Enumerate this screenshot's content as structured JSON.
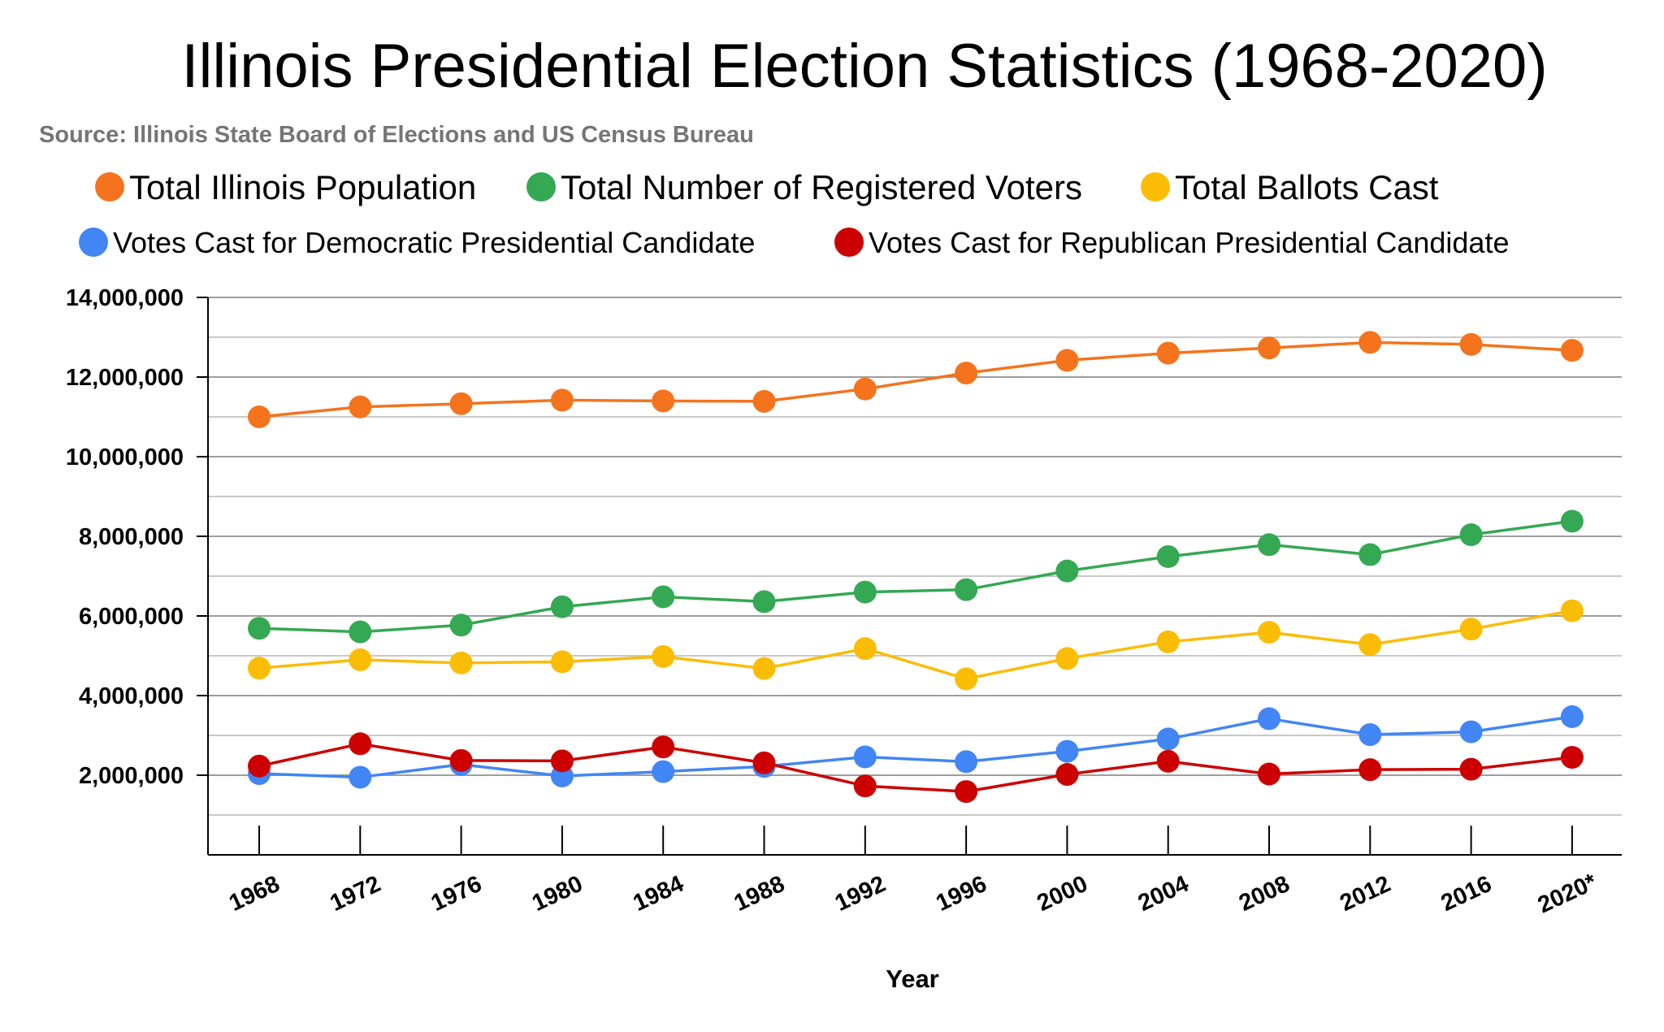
{
  "chart_data": {
    "type": "line",
    "title": "Illinois Presidential Election Statistics (1968-2020)",
    "subtitle": "Source: Illinois State Board of Elections and US Census Bureau",
    "xlabel": "Year",
    "ylabel": "",
    "ylim": [
      0,
      14000000
    ],
    "y_ticks": [
      "2,000,000",
      "4,000,000",
      "6,000,000",
      "8,000,000",
      "10,000,000",
      "12,000,000",
      "14,000,000"
    ],
    "y_tick_values": [
      2000000,
      4000000,
      6000000,
      8000000,
      10000000,
      12000000,
      14000000
    ],
    "categories": [
      "1968",
      "1972",
      "1976",
      "1980",
      "1984",
      "1988",
      "1992",
      "1996",
      "2000",
      "2004",
      "2008",
      "2012",
      "2016",
      "2020*"
    ],
    "grid": true,
    "legend_position": "top",
    "series": [
      {
        "name": "Total Illinois Population",
        "color": "#f4731c",
        "values": [
          11000000,
          11250000,
          11330000,
          11420000,
          11400000,
          11390000,
          11700000,
          12100000,
          12420000,
          12600000,
          12730000,
          12870000,
          12820000,
          12670000
        ]
      },
      {
        "name": "Total Number of Registered Voters",
        "color": "#34a853",
        "values": [
          5690000,
          5600000,
          5770000,
          6230000,
          6480000,
          6360000,
          6600000,
          6660000,
          7130000,
          7490000,
          7790000,
          7540000,
          8040000,
          8380000
        ]
      },
      {
        "name": "Total Ballots Cast",
        "color": "#fbbc04",
        "values": [
          4690000,
          4900000,
          4820000,
          4850000,
          4980000,
          4680000,
          5180000,
          4420000,
          4930000,
          5350000,
          5590000,
          5280000,
          5670000,
          6130000
        ]
      },
      {
        "name": "Votes Cast for Democratic Presidential Candidate",
        "color": "#4285f4",
        "values": [
          2040000,
          1950000,
          2270000,
          1980000,
          2090000,
          2220000,
          2460000,
          2340000,
          2600000,
          2910000,
          3420000,
          3020000,
          3090000,
          3470000
        ]
      },
      {
        "name": "Votes Cast for Republican Presidential Candidate",
        "color": "#cc0000",
        "values": [
          2230000,
          2790000,
          2370000,
          2360000,
          2710000,
          2310000,
          1730000,
          1590000,
          2020000,
          2350000,
          2030000,
          2140000,
          2150000,
          2450000
        ]
      }
    ]
  }
}
